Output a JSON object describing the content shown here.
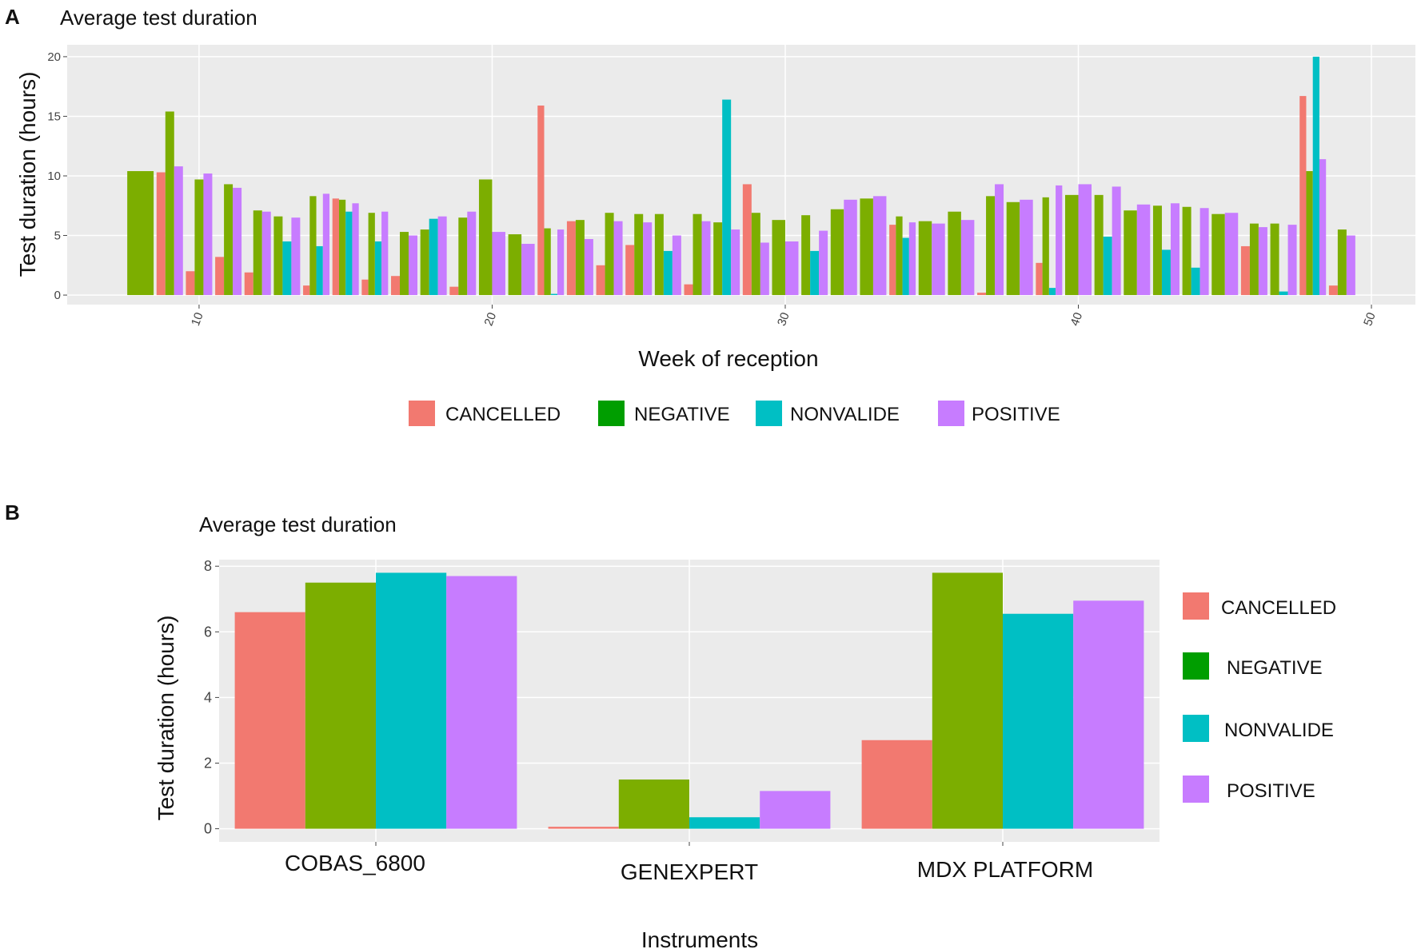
{
  "panel_a": {
    "letter": "A"
  },
  "panel_b": {
    "letter": "B"
  },
  "colors": {
    "CANCELLED": "#F27970",
    "NEGATIVE": "#7CAE00",
    "NEGATIVE_LEGEND": "#009E00",
    "NONVALIDE": "#00BFC4",
    "POSITIVE": "#C77CFF",
    "panel_bg": "#EBEBEB",
    "grid": "#FFFFFF"
  },
  "chart_data": [
    {
      "type": "bar",
      "title": "Average test duration",
      "xlabel": "Week of reception",
      "ylabel": "Test duration (hours)",
      "xlim": [
        5.5,
        51.5
      ],
      "ylim": [
        -0.8,
        21
      ],
      "xticks": [
        10,
        20,
        30,
        40,
        50
      ],
      "yticks": [
        0,
        5,
        10,
        15,
        20
      ],
      "legend_position": "bottom",
      "legend": [
        "CANCELLED",
        "NEGATIVE",
        "NONVALIDE",
        "POSITIVE"
      ],
      "series": [
        {
          "name": "CANCELLED",
          "points": [
            [
              9,
              10.3
            ],
            [
              10,
              2.0
            ],
            [
              11,
              3.2
            ],
            [
              12,
              1.9
            ],
            [
              14,
              0.8
            ],
            [
              15,
              8.1
            ],
            [
              16,
              1.3
            ],
            [
              17,
              1.6
            ],
            [
              19,
              0.7
            ],
            [
              22,
              15.9
            ],
            [
              23,
              6.2
            ],
            [
              24,
              2.5
            ],
            [
              25,
              4.2
            ],
            [
              27,
              0.9
            ],
            [
              29,
              9.3
            ],
            [
              34,
              5.9
            ],
            [
              37,
              0.2
            ],
            [
              39,
              2.7
            ],
            [
              46,
              4.1
            ],
            [
              48,
              16.7
            ],
            [
              49,
              0.8
            ]
          ]
        },
        {
          "name": "NEGATIVE",
          "points": [
            [
              8,
              10.4
            ],
            [
              9,
              15.4
            ],
            [
              10,
              9.7
            ],
            [
              11,
              9.3
            ],
            [
              12,
              7.1
            ],
            [
              13,
              6.6
            ],
            [
              14,
              8.3
            ],
            [
              15,
              8.0
            ],
            [
              16,
              6.9
            ],
            [
              17,
              5.3
            ],
            [
              18,
              5.5
            ],
            [
              19,
              6.5
            ],
            [
              20,
              9.7
            ],
            [
              21,
              5.1
            ],
            [
              22,
              5.6
            ],
            [
              23,
              6.3
            ],
            [
              24,
              6.9
            ],
            [
              25,
              6.8
            ],
            [
              26,
              6.8
            ],
            [
              27,
              6.8
            ],
            [
              28,
              6.1
            ],
            [
              29,
              6.9
            ],
            [
              30,
              6.3
            ],
            [
              31,
              6.7
            ],
            [
              32,
              7.2
            ],
            [
              33,
              8.1
            ],
            [
              34,
              6.6
            ],
            [
              35,
              6.2
            ],
            [
              36,
              7.0
            ],
            [
              37,
              8.3
            ],
            [
              38,
              7.8
            ],
            [
              39,
              8.2
            ],
            [
              40,
              8.4
            ],
            [
              41,
              8.4
            ],
            [
              42,
              7.1
            ],
            [
              43,
              7.5
            ],
            [
              44,
              7.4
            ],
            [
              45,
              6.8
            ],
            [
              46,
              6.0
            ],
            [
              47,
              6.0
            ],
            [
              48,
              10.4
            ],
            [
              49,
              5.5
            ]
          ]
        },
        {
          "name": "NONVALIDE",
          "points": [
            [
              13,
              4.5
            ],
            [
              14,
              4.1
            ],
            [
              15,
              7.0
            ],
            [
              16,
              4.5
            ],
            [
              18,
              6.4
            ],
            [
              22,
              0.1
            ],
            [
              26,
              3.7
            ],
            [
              28,
              16.4
            ],
            [
              31,
              3.7
            ],
            [
              34,
              4.8
            ],
            [
              39,
              0.6
            ],
            [
              41,
              4.9
            ],
            [
              43,
              3.8
            ],
            [
              44,
              2.3
            ],
            [
              47,
              0.3
            ],
            [
              48,
              20.0
            ]
          ]
        },
        {
          "name": "POSITIVE",
          "points": [
            [
              9,
              10.8
            ],
            [
              10,
              10.2
            ],
            [
              11,
              9.0
            ],
            [
              12,
              7.0
            ],
            [
              13,
              6.5
            ],
            [
              14,
              8.5
            ],
            [
              15,
              7.7
            ],
            [
              16,
              7.0
            ],
            [
              17,
              5.0
            ],
            [
              18,
              6.6
            ],
            [
              19,
              7.0
            ],
            [
              20,
              5.3
            ],
            [
              21,
              4.3
            ],
            [
              22,
              5.5
            ],
            [
              23,
              4.7
            ],
            [
              24,
              6.2
            ],
            [
              25,
              6.1
            ],
            [
              26,
              5.0
            ],
            [
              27,
              6.2
            ],
            [
              28,
              5.5
            ],
            [
              29,
              4.4
            ],
            [
              30,
              4.5
            ],
            [
              31,
              5.4
            ],
            [
              32,
              8.0
            ],
            [
              33,
              8.3
            ],
            [
              34,
              6.1
            ],
            [
              35,
              6.0
            ],
            [
              36,
              6.3
            ],
            [
              37,
              9.3
            ],
            [
              38,
              8.0
            ],
            [
              39,
              9.2
            ],
            [
              40,
              9.3
            ],
            [
              41,
              9.1
            ],
            [
              42,
              7.6
            ],
            [
              43,
              7.7
            ],
            [
              44,
              7.3
            ],
            [
              45,
              6.9
            ],
            [
              46,
              5.7
            ],
            [
              47,
              5.9
            ],
            [
              48,
              11.4
            ],
            [
              49,
              5.0
            ]
          ]
        }
      ]
    },
    {
      "type": "bar",
      "title": "Average test duration",
      "xlabel": "Instruments",
      "ylabel": "Test duration (hours)",
      "ylim": [
        -0.4,
        8.2
      ],
      "yticks": [
        0,
        2,
        4,
        6,
        8
      ],
      "categories": [
        "COBAS_6800",
        "GENEXPERT",
        "MDX PLATFORM"
      ],
      "legend_position": "right",
      "legend": [
        "CANCELLED",
        "NEGATIVE",
        "NONVALIDE",
        "POSITIVE"
      ],
      "series": [
        {
          "name": "CANCELLED",
          "values": [
            6.6,
            0.06,
            2.7
          ]
        },
        {
          "name": "NEGATIVE",
          "values": [
            7.5,
            1.5,
            7.8
          ]
        },
        {
          "name": "NONVALIDE",
          "values": [
            7.8,
            0.35,
            6.55
          ]
        },
        {
          "name": "POSITIVE",
          "values": [
            7.7,
            1.15,
            6.95
          ]
        }
      ]
    }
  ]
}
